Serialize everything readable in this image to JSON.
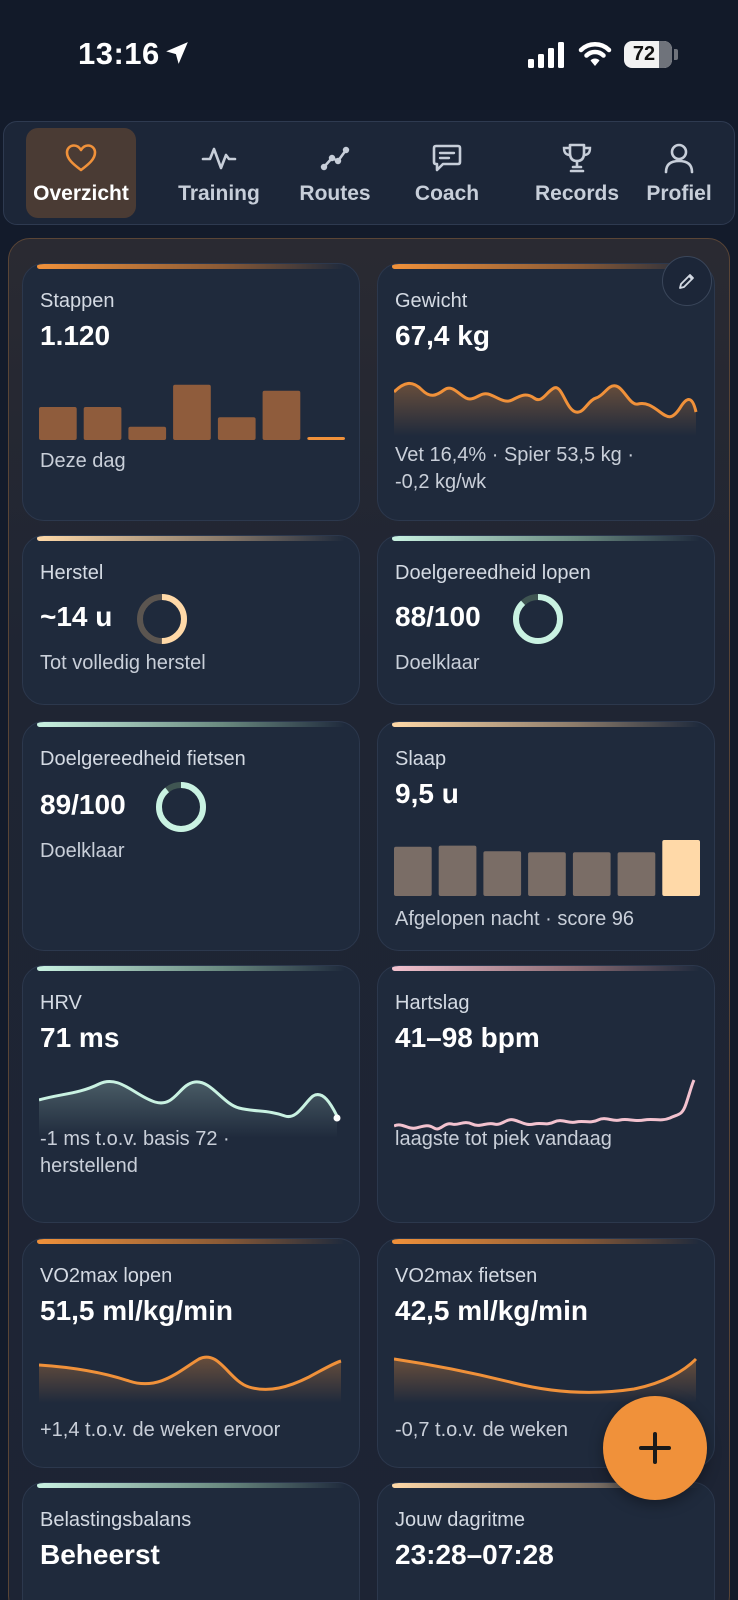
{
  "status_bar": {
    "time": "13:16",
    "battery": "72",
    "battery_level": 0.72
  },
  "tabs": [
    {
      "label": "Overzicht",
      "icon": "heart-icon",
      "active": true
    },
    {
      "label": "Training",
      "icon": "activity-icon",
      "active": false
    },
    {
      "label": "Routes",
      "icon": "route-icon",
      "active": false
    },
    {
      "label": "Coach",
      "icon": "chat-icon",
      "active": false
    },
    {
      "label": "Records",
      "icon": "trophy-icon",
      "active": false
    },
    {
      "label": "Profiel",
      "icon": "user-icon",
      "active": false
    }
  ],
  "cards": {
    "stappen": {
      "title": "Stappen",
      "value": "1.120",
      "sub": "Deze dag",
      "bars": [
        0.55,
        0.55,
        0.22,
        0.92,
        0.38,
        0.82,
        0.05
      ]
    },
    "gewicht": {
      "title": "Gewicht",
      "value": "67,4 kg",
      "sub1": "Vet 16,4% · Spier 53,5 kg ·",
      "sub2": "-0,2 kg/wk"
    },
    "herstel": {
      "title": "Herstel",
      "value": "~14 u",
      "sub": "Tot volledig herstel",
      "ring_level": 0.5
    },
    "doel_lopen": {
      "title": "Doelgereedheid lopen",
      "value": "88/100",
      "sub": "Doelklaar",
      "ring_level": 0.88
    },
    "doel_fietsen": {
      "title": "Doelgereedheid fietsen",
      "value": "89/100",
      "sub": "Doelklaar",
      "ring_level": 0.89
    },
    "slaap": {
      "title": "Slaap",
      "value": "9,5 u",
      "sub": "Afgelopen nacht · score 96",
      "bars": [
        0.88,
        0.9,
        0.8,
        0.78,
        0.78,
        0.78,
        1.0
      ]
    },
    "hrv": {
      "title": "HRV",
      "value": "71 ms",
      "sub1": "-1 ms t.o.v. basis 72 ·",
      "sub2": "herstellend"
    },
    "hartslag": {
      "title": "Hartslag",
      "value": "41–98 bpm",
      "sub": "laagste tot piek vandaag"
    },
    "vo2_lopen": {
      "title": "VO2max lopen",
      "value": "51,5 ml/kg/min",
      "sub": "+1,4 t.o.v. de weken ervoor"
    },
    "vo2_fietsen": {
      "title": "VO2max fietsen",
      "value": "42,5 ml/kg/min",
      "sub": "-0,7 t.o.v. de weken"
    },
    "belasting": {
      "title": "Belastingsbalans",
      "value": "Beheerst"
    },
    "dagritme": {
      "title": "Jouw dagritme",
      "value": "23:28–07:28"
    }
  },
  "colors": {
    "accent_orange": "#f0913a",
    "accent_mint": "#c9f2e2",
    "accent_peach": "#ffd9a8",
    "accent_pink": "#f3c2cf",
    "background": "#131b2b",
    "card": "#1f2a3c"
  }
}
